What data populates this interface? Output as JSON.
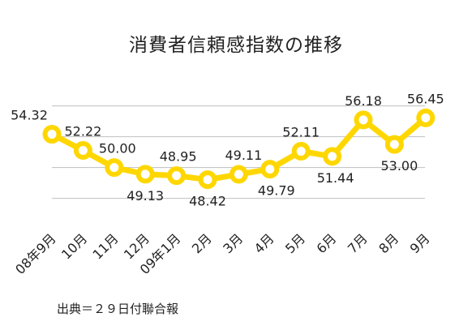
{
  "chart_data": {
    "type": "line",
    "title": "消費者信頼感指数の推移",
    "xlabel": "",
    "ylabel": "",
    "categories": [
      "08年9月",
      "10月",
      "11月",
      "12月",
      "09年1月",
      "2月",
      "3月",
      "4月",
      "5月",
      "6月",
      "7月",
      "8月",
      "9月"
    ],
    "series": [
      {
        "values": [
          54.32,
          52.22,
          50.0,
          49.13,
          48.95,
          48.42,
          49.11,
          49.79,
          52.11,
          51.44,
          56.18,
          53.0,
          56.45
        ]
      }
    ],
    "data_labels": [
      "54.32",
      "52.22",
      "50.00",
      "49.13",
      "48.95",
      "48.42",
      "49.11",
      "49.79",
      "52.11",
      "51.44",
      "56.18",
      "53.00",
      "56.45"
    ],
    "ylim": [
      44,
      60
    ],
    "gridlines": [
      46,
      50,
      54,
      58
    ],
    "grid": true,
    "legend": "none",
    "line_color": "#FFD700",
    "grid_color": "#BFBFBF"
  },
  "source": "出典＝２９日付聯合報"
}
